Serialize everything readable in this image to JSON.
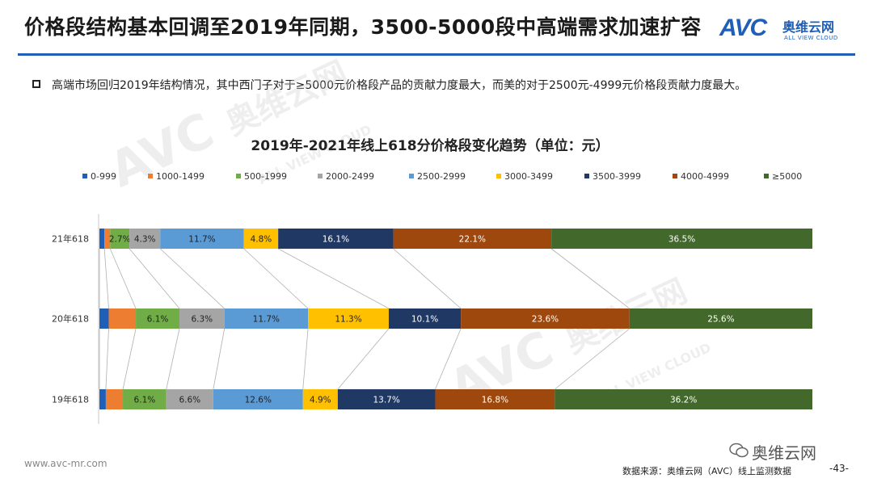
{
  "header": {
    "title": "价格段结构基本回调至2019年同期，3500-5000段中高端需求加速扩容",
    "logo_mark": "AVC",
    "logo_cn": "奥维云网",
    "logo_en": "ALL VIEW CLOUD"
  },
  "bullet": "高端市场回归2019年结构情况，其中西门子对于≥5000元价格段产品的贡献力度最大，而美的对于2500元-4999元价格段贡献力度最大。",
  "footer": {
    "website": "www.avc-mr.com",
    "source": "数据来源：奥维云网（AVC）线上监测数据",
    "page": "-43-",
    "wechat": "奥维云网"
  },
  "watermark": {
    "mark": "AVC",
    "cn": "奥维云网",
    "en": "ALL VIEW CLOUD"
  },
  "chart_data": {
    "type": "bar",
    "orientation": "horizontal",
    "stacked": "100%",
    "title": "2019年-2021年线上618分价格段变化趋势（单位：元）",
    "categories": [
      "21年618",
      "20年618",
      "19年618"
    ],
    "series": [
      {
        "name": "0-999",
        "color": "#1f5fb8",
        "values": [
          0.7,
          1.3,
          0.9
        ],
        "labels": [
          "",
          "",
          ""
        ]
      },
      {
        "name": "1000-1499",
        "color": "#ed7d31",
        "values": [
          0.8,
          3.8,
          2.4
        ],
        "labels": [
          "",
          "",
          ""
        ]
      },
      {
        "name": "500-1999",
        "color": "#70ad47",
        "values": [
          2.7,
          6.1,
          6.1
        ],
        "labels": [
          "2.7%",
          "6.1%",
          "6.1%"
        ]
      },
      {
        "name": "2000-2499",
        "color": "#a5a5a5",
        "values": [
          4.3,
          6.3,
          6.6
        ],
        "labels": [
          "4.3%",
          "6.3%",
          "6.6%"
        ]
      },
      {
        "name": "2500-2999",
        "color": "#5b9bd5",
        "values": [
          11.7,
          11.7,
          12.6
        ],
        "labels": [
          "11.7%",
          "11.7%",
          "12.6%"
        ]
      },
      {
        "name": "3000-3499",
        "color": "#ffc000",
        "values": [
          4.8,
          11.3,
          4.9
        ],
        "labels": [
          "4.8%",
          "11.3%",
          "4.9%"
        ]
      },
      {
        "name": "3500-3999",
        "color": "#203864",
        "values": [
          16.1,
          10.1,
          13.7
        ],
        "labels": [
          "16.1%",
          "10.1%",
          "13.7%"
        ]
      },
      {
        "name": "4000-4999",
        "color": "#9e480e",
        "values": [
          22.1,
          23.6,
          16.8
        ],
        "labels": [
          "22.1%",
          "23.6%",
          "16.8%"
        ]
      },
      {
        "name": "≥5000",
        "color": "#43682b",
        "values": [
          36.5,
          25.6,
          36.2
        ],
        "labels": [
          "36.5%",
          "25.6%",
          "36.2%"
        ]
      }
    ],
    "xlim": [
      0,
      100
    ],
    "legend": "top",
    "series_lines": true
  }
}
